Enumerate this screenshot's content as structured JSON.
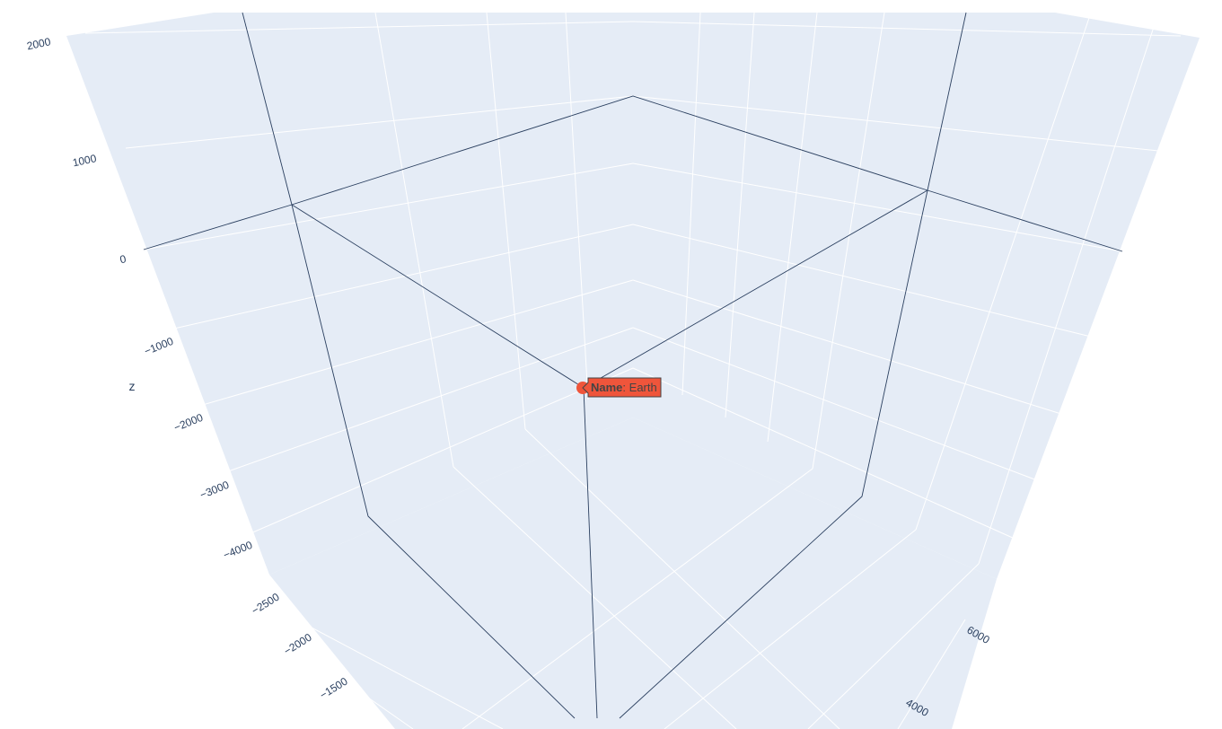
{
  "chart_data": {
    "type": "scatter3d",
    "title": "",
    "scene_bgcolor": "#e5ecf6",
    "grid_color": "#ffffff",
    "axes": {
      "x": {
        "title": "",
        "ticks": [
          "6000",
          "4000"
        ]
      },
      "y": {
        "title": "",
        "ticks": [
          "−2500",
          "−2000",
          "−1500"
        ]
      },
      "z": {
        "title": "z",
        "ticks": [
          "2000",
          "1000",
          "0",
          "−1000",
          "−2000",
          "−3000",
          "−4000"
        ]
      }
    },
    "series": [
      {
        "type": "markers",
        "color": "#ef553b",
        "points": [
          {
            "name": "Earth",
            "hover_key": "Name",
            "hover_value": ": Earth"
          }
        ]
      },
      {
        "type": "lines",
        "color": "#2a3f5f"
      }
    ],
    "legend": "none"
  }
}
